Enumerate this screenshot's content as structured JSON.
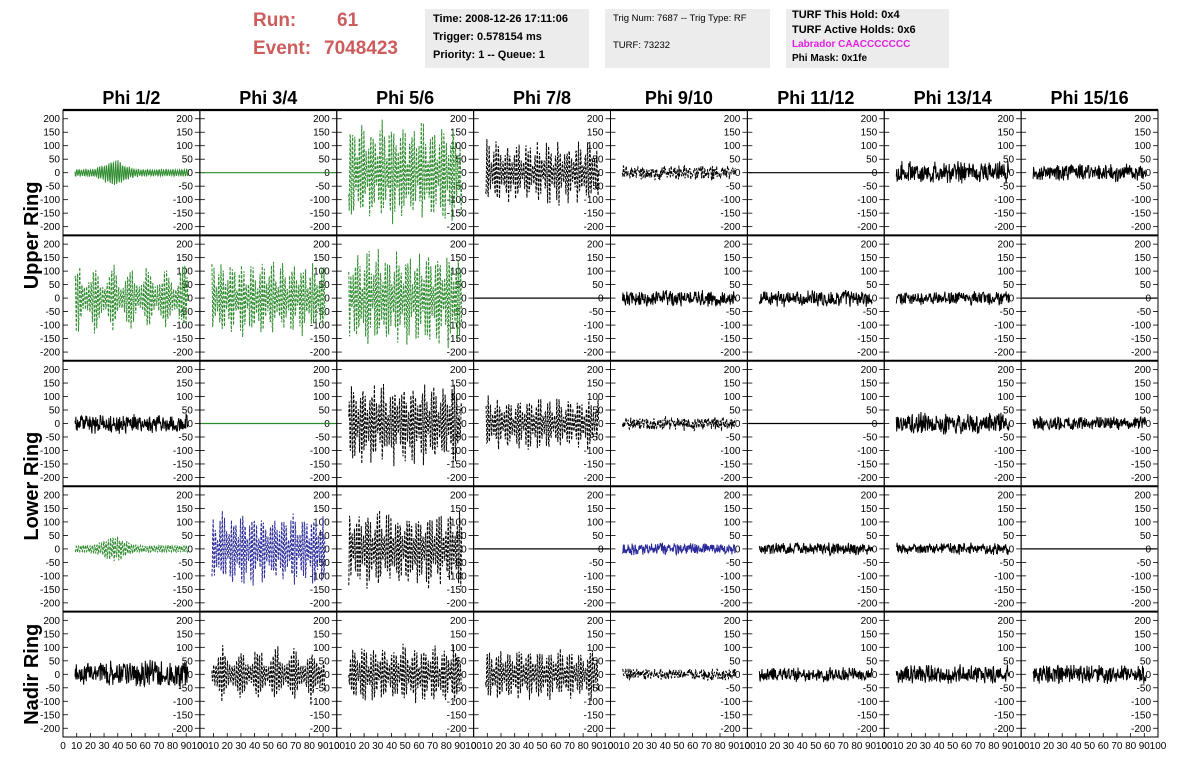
{
  "header": {
    "run_label": "Run:",
    "run_value": "61",
    "event_label": "Event:",
    "event_value": "7048423",
    "box1": [
      "Time: 2008-12-26 17:11:06",
      "Trigger: 0.578154 ms",
      "Priority: 1 -- Queue: 1"
    ],
    "box2": [
      "Trig Num: 7687 -- Trig Type: RF",
      "TURF: 73232"
    ],
    "box3": [
      "TURF This Hold: 0x4",
      "TURF Active Holds: 0x6",
      "Labrador CAACCCCCCC",
      "Phi Mask: 0x1fe"
    ],
    "labrador_color": "#e020e0"
  },
  "chart_data": {
    "type": "line",
    "title": "",
    "columns": [
      "Phi 1/2",
      "Phi 3/4",
      "Phi 5/6",
      "Phi 7/8",
      "Phi 9/10",
      "Phi 11/12",
      "Phi 13/14",
      "Phi 15/16"
    ],
    "ring_labels": [
      "Upper Ring",
      "Lower Ring",
      "Nadir Ring"
    ],
    "rows": 5,
    "xlim": [
      0,
      100
    ],
    "ylim": [
      -225,
      225
    ],
    "x_ticks": [
      0,
      10,
      20,
      30,
      40,
      50,
      60,
      70,
      80,
      90,
      100
    ],
    "y_ticks": [
      200,
      150,
      100,
      50,
      0,
      -50,
      -100,
      -150,
      -200
    ],
    "colors": {
      "green": "#2e8b2e",
      "black": "#000000",
      "blue": "#2a2a9a"
    },
    "panels": [
      [
        {
          "color": "green",
          "style": "solid",
          "amp": 50,
          "pattern": "burst",
          "seed": 1
        },
        {
          "color": "green",
          "style": "flat",
          "amp": 0,
          "pattern": "flat",
          "seed": 2
        },
        {
          "color": "green",
          "style": "dash",
          "amp": 210,
          "pattern": "packet",
          "seed": 3
        },
        {
          "color": "black",
          "style": "dash",
          "amp": 130,
          "pattern": "packet",
          "seed": 4
        },
        {
          "color": "black",
          "style": "dash",
          "amp": 30,
          "pattern": "noise",
          "seed": 5
        },
        {
          "color": "black",
          "style": "flat",
          "amp": 0,
          "pattern": "flat",
          "seed": 6
        },
        {
          "color": "black",
          "style": "solid",
          "amp": 45,
          "pattern": "noise",
          "seed": 7
        },
        {
          "color": "black",
          "style": "solid",
          "amp": 35,
          "pattern": "noise",
          "seed": 8
        }
      ],
      [
        {
          "color": "green",
          "style": "dash",
          "amp": 140,
          "pattern": "spikes",
          "seed": 11
        },
        {
          "color": "green",
          "style": "dash",
          "amp": 150,
          "pattern": "packet",
          "seed": 12
        },
        {
          "color": "green",
          "style": "dash",
          "amp": 200,
          "pattern": "packet",
          "seed": 13
        },
        {
          "color": "black",
          "style": "flat",
          "amp": 0,
          "pattern": "flat",
          "seed": 14
        },
        {
          "color": "black",
          "style": "solid",
          "amp": 35,
          "pattern": "noise",
          "seed": 15
        },
        {
          "color": "black",
          "style": "solid",
          "amp": 35,
          "pattern": "noise",
          "seed": 16
        },
        {
          "color": "black",
          "style": "solid",
          "amp": 30,
          "pattern": "noise",
          "seed": 17
        },
        {
          "color": "black",
          "style": "flat",
          "amp": 0,
          "pattern": "flat",
          "seed": 18
        }
      ],
      [
        {
          "color": "black",
          "style": "solid",
          "amp": 40,
          "pattern": "noise",
          "seed": 21
        },
        {
          "color": "green",
          "style": "flat",
          "amp": 0,
          "pattern": "flat",
          "seed": 22
        },
        {
          "color": "black",
          "style": "dash",
          "amp": 170,
          "pattern": "packet",
          "seed": 23
        },
        {
          "color": "black",
          "style": "dash",
          "amp": 110,
          "pattern": "packet",
          "seed": 24
        },
        {
          "color": "black",
          "style": "dash",
          "amp": 30,
          "pattern": "noise",
          "seed": 25
        },
        {
          "color": "black",
          "style": "flat",
          "amp": 0,
          "pattern": "flat",
          "seed": 26
        },
        {
          "color": "black",
          "style": "solid",
          "amp": 45,
          "pattern": "noise",
          "seed": 27
        },
        {
          "color": "black",
          "style": "solid",
          "amp": 30,
          "pattern": "noise",
          "seed": 28
        }
      ],
      [
        {
          "color": "green",
          "style": "dash",
          "amp": 50,
          "pattern": "burst",
          "seed": 31
        },
        {
          "color": "blue",
          "style": "dash",
          "amp": 150,
          "pattern": "packet",
          "seed": 32
        },
        {
          "color": "black",
          "style": "dash",
          "amp": 160,
          "pattern": "packet",
          "seed": 33
        },
        {
          "color": "black",
          "style": "flat",
          "amp": 0,
          "pattern": "flat",
          "seed": 34
        },
        {
          "color": "blue",
          "style": "solid",
          "amp": 25,
          "pattern": "noise",
          "seed": 35
        },
        {
          "color": "black",
          "style": "solid",
          "amp": 25,
          "pattern": "noise",
          "seed": 36
        },
        {
          "color": "black",
          "style": "solid",
          "amp": 25,
          "pattern": "noise",
          "seed": 37
        },
        {
          "color": "black",
          "style": "flat",
          "amp": 0,
          "pattern": "flat",
          "seed": 38
        }
      ],
      [
        {
          "color": "black",
          "style": "solid",
          "amp": 55,
          "pattern": "noise",
          "seed": 41
        },
        {
          "color": "black",
          "style": "dash",
          "amp": 120,
          "pattern": "spikes",
          "seed": 42
        },
        {
          "color": "black",
          "style": "dash",
          "amp": 120,
          "pattern": "packet",
          "seed": 43
        },
        {
          "color": "black",
          "style": "dash",
          "amp": 110,
          "pattern": "packet",
          "seed": 44
        },
        {
          "color": "black",
          "style": "dash",
          "amp": 25,
          "pattern": "noise",
          "seed": 45
        },
        {
          "color": "black",
          "style": "solid",
          "amp": 30,
          "pattern": "noise",
          "seed": 46
        },
        {
          "color": "black",
          "style": "solid",
          "amp": 40,
          "pattern": "noise",
          "seed": 47
        },
        {
          "color": "black",
          "style": "solid",
          "amp": 40,
          "pattern": "noise",
          "seed": 48
        }
      ]
    ]
  }
}
